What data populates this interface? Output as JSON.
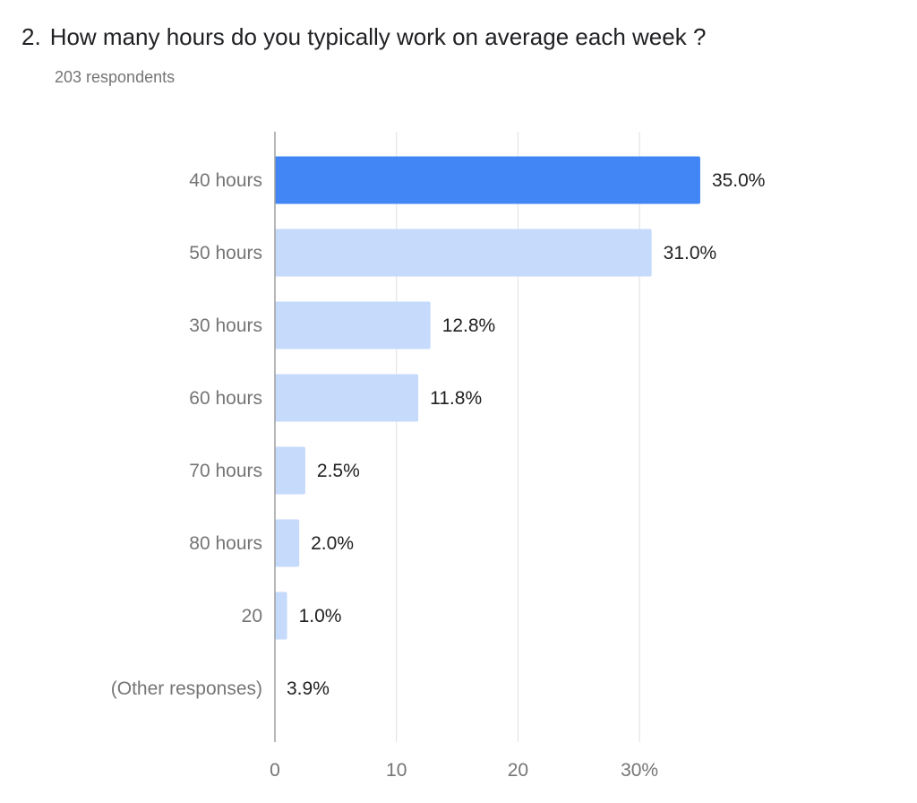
{
  "question": {
    "number": "2.",
    "title": "How many hours do you typically work on average each week ?",
    "respondents": "203 respondents"
  },
  "colors": {
    "highlight": "#4285f4",
    "bar": "#c6dafc",
    "axis": "#9e9e9e",
    "grid": "#e0e0e0"
  },
  "chart_data": {
    "type": "bar",
    "orientation": "horizontal",
    "title": "",
    "xlabel": "",
    "ylabel": "",
    "categories": [
      "40 hours",
      "50 hours",
      "30 hours",
      "60 hours",
      "70 hours",
      "80 hours",
      "20",
      "(Other responses)"
    ],
    "values": [
      35.0,
      31.0,
      12.8,
      11.8,
      2.5,
      2.0,
      1.0,
      3.9
    ],
    "value_labels": [
      "35.0%",
      "31.0%",
      "12.8%",
      "11.8%",
      "2.5%",
      "2.0%",
      "1.0%",
      "3.9%"
    ],
    "bar_drawn": [
      true,
      true,
      true,
      true,
      true,
      true,
      true,
      false
    ],
    "highlight_index": 0,
    "xlim": [
      0,
      37
    ],
    "ticks": [
      0,
      10,
      20,
      30
    ],
    "tick_labels": [
      "0",
      "10",
      "20",
      "30%"
    ],
    "grid": true
  }
}
